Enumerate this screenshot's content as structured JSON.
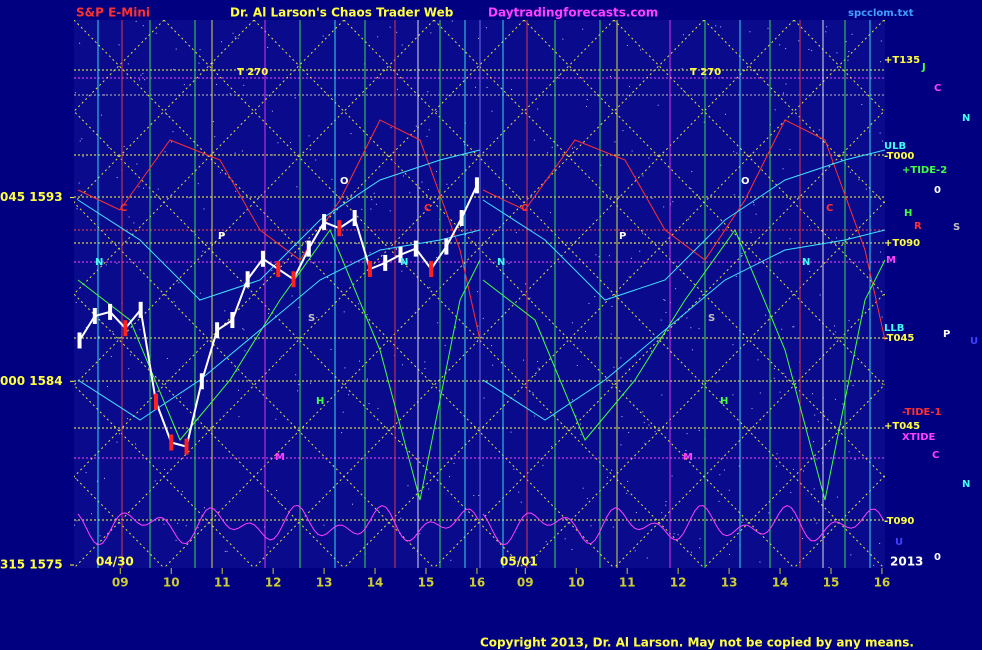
{
  "chart_data": {
    "type": "line",
    "header": {
      "left": "S&P E-Mini",
      "title": "Dr. Al Larson's Chaos Trader Web",
      "site": "Daytradingforecasts.com",
      "file": "spcclom.txt"
    },
    "copyright": "Copyright 2013, Dr. Al Larson. May not be copied by any means.",
    "dates": [
      "04/30",
      "05/01"
    ],
    "year": "2013",
    "hour_labels": [
      "09",
      "10",
      "11",
      "12",
      "13",
      "14",
      "15",
      "16"
    ],
    "hours": [
      9,
      10,
      11,
      12,
      13,
      14,
      15,
      16
    ],
    "xlim": [
      8.17,
      16.06
    ],
    "ylim": [
      1575,
      1601.7
    ],
    "yticks": [
      {
        "value": 1593,
        "label": "045 1593"
      },
      {
        "value": 1584,
        "label": "000 1584"
      },
      {
        "value": 1575,
        "label": "315 1575"
      }
    ],
    "series": [
      {
        "name": "S&P E-Mini",
        "color": "#ffffff",
        "x": [
          8.2,
          8.5,
          8.8,
          9.1,
          9.4,
          9.7,
          10.0,
          10.3,
          10.6,
          10.9,
          11.2,
          11.5,
          11.8,
          12.1,
          12.4,
          12.7,
          13.0,
          13.3,
          13.6,
          13.9,
          14.2,
          14.5,
          14.8,
          15.1,
          15.4,
          15.7,
          16.0
        ],
        "values": [
          1586.0,
          1587.2,
          1587.4,
          1586.6,
          1587.5,
          1583.0,
          1581.0,
          1580.8,
          1584.0,
          1586.5,
          1587.0,
          1589.0,
          1590.0,
          1589.5,
          1589.0,
          1590.5,
          1591.8,
          1591.5,
          1592.0,
          1589.5,
          1589.8,
          1590.2,
          1590.5,
          1589.5,
          1590.6,
          1592.0,
          1593.6
        ]
      }
    ],
    "right_labels": [
      "+T135",
      "J",
      "C",
      "N",
      "ULB",
      "-T000",
      "+TIDE-2",
      "0",
      "H",
      "R",
      "S",
      "+T090",
      "M",
      "LLB",
      "P",
      "U",
      "-T045",
      "-TIDE-1",
      "+T045",
      "XTIDE",
      "C",
      "N",
      "-T090",
      "U",
      "0"
    ],
    "chart_labels": [
      "T   270",
      "T   270",
      "O",
      "O",
      "P",
      "P",
      "C",
      "C",
      "C",
      "C",
      "N",
      "N",
      "N",
      "N",
      "S",
      "S",
      "M",
      "M",
      "H",
      "H"
    ]
  }
}
